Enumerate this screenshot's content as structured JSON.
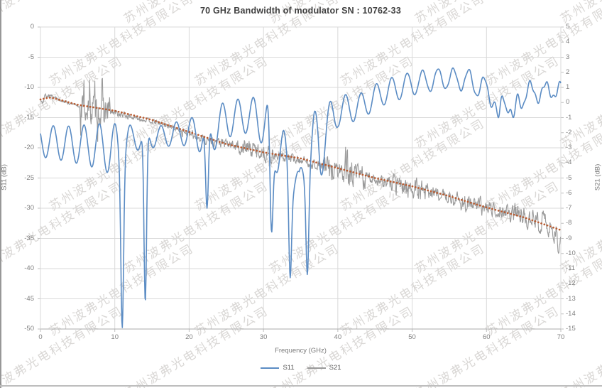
{
  "watermark": {
    "text": "苏州波弗光电科技有限公司",
    "color": "#9e9893",
    "opacity": 0.38,
    "rotation_deg": -31,
    "grid": {
      "rows": 7,
      "cols": 5,
      "spacing_x": 205,
      "spacing_y": 88,
      "row_offset": 100,
      "start_x": -30,
      "start_y": 14
    }
  },
  "chart_data": {
    "type": "line",
    "title": "70 GHz Bandwidth of modulator SN : 10762-33",
    "xlabel": "Frequency (GHz)",
    "x_axis": {
      "min": 0,
      "max": 70,
      "tick_step": 10
    },
    "y_axis_left": {
      "label": "S11 (dB)",
      "min": -50,
      "max": 0,
      "tick_step": 5
    },
    "y_axis_right": {
      "label": "S21 (dB)",
      "min": -15,
      "max": 5,
      "tick_step": 1
    },
    "grid": true,
    "legend_position": "bottom",
    "colors": {
      "gridline": "#d9d9d9",
      "axis_line": "#ababab",
      "tick_mark": "#bfbfbf"
    },
    "series": [
      {
        "name": "S11",
        "axis": "left",
        "color": "#5b8cc4",
        "style": "solid",
        "width": 1.6,
        "oscillation": {
          "period_ghz": 2.07,
          "peak_ref_ghz": 1.72,
          "secondary_period_ghz": 0.8,
          "secondary_amp_per_ghz": 0.022,
          "secondary_start_ghz": 48
        },
        "envelope_keypoints": [
          [
            0,
            -16.3,
            -21.5
          ],
          [
            4,
            -16.4,
            -22.3
          ],
          [
            8,
            -16.0,
            -23.5
          ],
          [
            10.5,
            -16.0,
            -25.0
          ],
          [
            12.5,
            -16.3,
            -20.5
          ],
          [
            16,
            -16.4,
            -19.8
          ],
          [
            20,
            -15.2,
            -19.6
          ],
          [
            22.5,
            -13.8,
            -21.5
          ],
          [
            25,
            -12.3,
            -18.3
          ],
          [
            28,
            -11.6,
            -17.5
          ],
          [
            30.5,
            -11.8,
            -20.0
          ],
          [
            32.7,
            -17.0,
            -27.0
          ],
          [
            34.8,
            -24.0,
            -28.5
          ],
          [
            36.8,
            -14.0,
            -24.5
          ],
          [
            38.5,
            -12.8,
            -21.0
          ],
          [
            40,
            -11.3,
            -16.5
          ],
          [
            43,
            -11.0,
            -15.3
          ],
          [
            46,
            -8.8,
            -13.0
          ],
          [
            50,
            -7.4,
            -11.3
          ],
          [
            54,
            -6.8,
            -10.2
          ],
          [
            57.5,
            -7.0,
            -10.5
          ],
          [
            60.5,
            -8.8,
            -13.0
          ],
          [
            63.5,
            -9.3,
            -14.3
          ],
          [
            66,
            -9.2,
            -12.5
          ],
          [
            70,
            -9.3,
            -11.5
          ]
        ],
        "notches": [
          [
            11.0,
            -49.8,
            0.25
          ],
          [
            14.1,
            -45.5,
            0.25
          ],
          [
            22.4,
            -30.0,
            0.3
          ],
          [
            31.1,
            -34.0,
            0.3
          ],
          [
            33.6,
            -41.5,
            0.25
          ],
          [
            35.9,
            -41.0,
            0.25
          ],
          [
            37.8,
            -24.5,
            0.3
          ],
          [
            61.6,
            -15.0,
            0.4
          ],
          [
            63.6,
            -15.0,
            0.45
          ]
        ]
      },
      {
        "name": "S21",
        "axis": "right",
        "color": "#9a9a9a",
        "style": "solid",
        "width": 1.1,
        "midline_points": [
          [
            0,
            0.1
          ],
          [
            0.7,
            0.42
          ],
          [
            1.5,
            0.5
          ],
          [
            2.5,
            0.2
          ],
          [
            5,
            -0.25
          ],
          [
            7.5,
            -0.45
          ],
          [
            10,
            -0.7
          ],
          [
            12.5,
            -1.0
          ],
          [
            15,
            -1.25
          ],
          [
            17.5,
            -1.6
          ],
          [
            20,
            -2.1
          ],
          [
            22.5,
            -2.5
          ],
          [
            25,
            -2.75
          ],
          [
            27.5,
            -3.0
          ],
          [
            30,
            -3.3
          ],
          [
            32.5,
            -3.6
          ],
          [
            35,
            -3.8
          ],
          [
            37.5,
            -4.2
          ],
          [
            40,
            -4.6
          ],
          [
            42.5,
            -4.9
          ],
          [
            45,
            -5.05
          ],
          [
            47.5,
            -5.4
          ],
          [
            50,
            -5.7
          ],
          [
            52.5,
            -5.9
          ],
          [
            55,
            -6.3
          ],
          [
            57.5,
            -6.7
          ],
          [
            60,
            -7.0
          ],
          [
            62.5,
            -7.2
          ],
          [
            65,
            -7.5
          ],
          [
            67.5,
            -8.0
          ],
          [
            69,
            -8.6
          ],
          [
            70,
            -9.4
          ]
        ],
        "noise_base": 0.12,
        "noise_seed": 13,
        "noise_bursts": [
          [
            0.2,
            1.3,
            0.3
          ],
          [
            5.3,
            9.4,
            1.5
          ],
          [
            9.4,
            12,
            0.3
          ],
          [
            12,
            19,
            0.2
          ],
          [
            19,
            26.5,
            0.45
          ],
          [
            26.5,
            31.2,
            0.8
          ],
          [
            31.2,
            37.8,
            0.45
          ],
          [
            37.8,
            43.8,
            1.25
          ],
          [
            43.8,
            47.2,
            0.55
          ],
          [
            47.2,
            52.3,
            0.95
          ],
          [
            52.3,
            55.5,
            0.55
          ],
          [
            55.5,
            59.5,
            0.8
          ],
          [
            59.5,
            62.5,
            0.6
          ],
          [
            62.5,
            67.5,
            0.9
          ],
          [
            67.5,
            70,
            1.1
          ]
        ]
      },
      {
        "name": "S21 trend",
        "axis": "right",
        "color": "#b85c32",
        "style": "dotted",
        "width": 2.7,
        "show_in_legend": false,
        "points": [
          [
            0,
            0.2
          ],
          [
            1.3,
            0.35
          ],
          [
            5,
            -0.15
          ],
          [
            10,
            -0.55
          ],
          [
            15,
            -1.15
          ],
          [
            20,
            -1.95
          ],
          [
            25,
            -2.75
          ],
          [
            30,
            -3.3
          ],
          [
            35,
            -3.7
          ],
          [
            40,
            -4.35
          ],
          [
            45,
            -5.0
          ],
          [
            50,
            -5.55
          ],
          [
            55,
            -6.2
          ],
          [
            60,
            -6.95
          ],
          [
            65,
            -7.6
          ],
          [
            70,
            -8.45
          ]
        ]
      }
    ]
  },
  "legend": {
    "items": [
      {
        "label": "S11",
        "color": "#5b8cc4"
      },
      {
        "label": "S21",
        "color": "#9a9a9a"
      }
    ]
  }
}
